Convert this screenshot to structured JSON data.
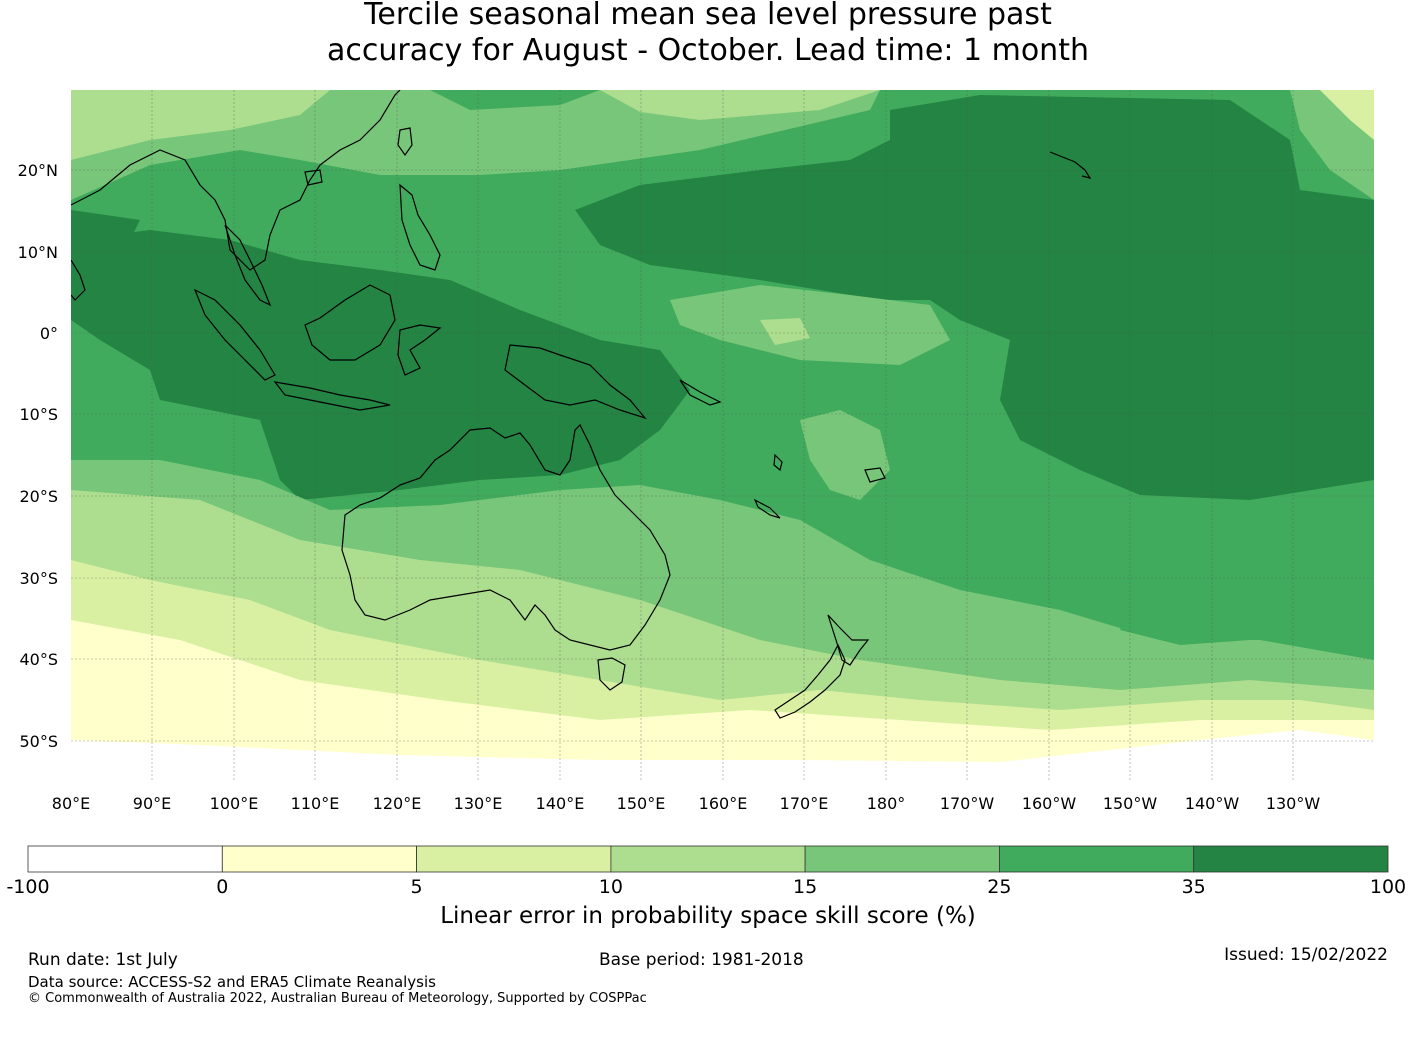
{
  "title": {
    "line1": "Tercile seasonal mean sea level pressure past",
    "line2": "accuracy for August - October. Lead time: 1 month"
  },
  "map": {
    "lat_labels": [
      "20°N",
      "10°N",
      "0°",
      "10°S",
      "20°S",
      "30°S",
      "40°S",
      "50°S"
    ],
    "lon_labels": [
      "80°E",
      "90°E",
      "100°E",
      "110°E",
      "120°E",
      "130°E",
      "140°E",
      "150°E",
      "160°E",
      "170°E",
      "180°",
      "170°W",
      "160°W",
      "150°W",
      "140°W",
      "130°W"
    ],
    "lat_range": [
      -55,
      30
    ],
    "lon_range": [
      80,
      240
    ]
  },
  "colorbar": {
    "label": "Linear error in probability space skill score (%)",
    "ticks": [
      "-100",
      "0",
      "5",
      "10",
      "15",
      "25",
      "35",
      "100"
    ],
    "colors": [
      "#ffffff",
      "#ffffcc",
      "#d9f0a3",
      "#addd8e",
      "#78c679",
      "#41ab5d",
      "#238443"
    ]
  },
  "footer": {
    "run_date": "Run date: 1st July",
    "base_period": "Base period: 1981-2018",
    "issued": "Issued: 15/02/2022",
    "data_source": "Data source: ACCESS-S2 and ERA5 Climate Reanalysis",
    "copyright": "© Commonwealth of Australia 2022, Australian Bureau of Meteorology, Supported by COSPPac"
  }
}
